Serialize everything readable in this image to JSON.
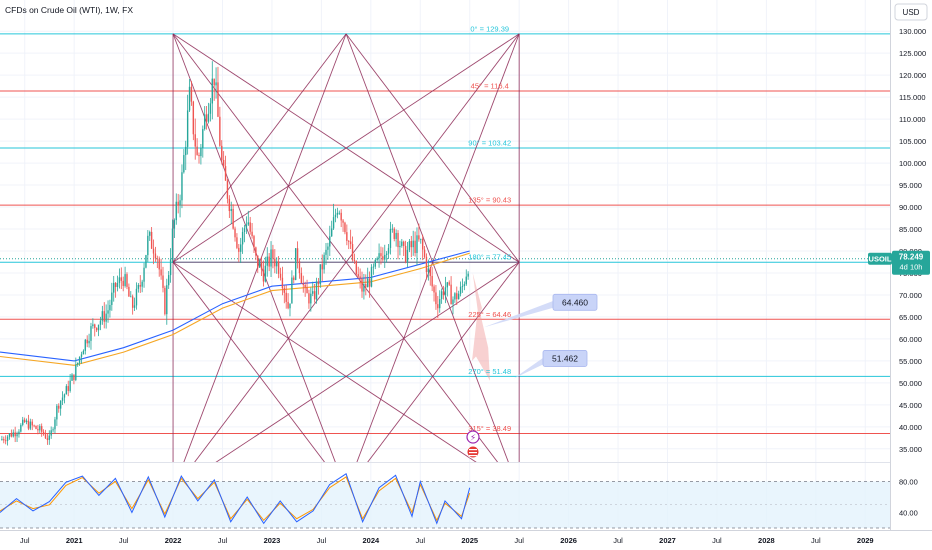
{
  "header": {
    "symbol_line": "CFDs on Crude Oil (WTI), 1W, FX",
    "currency": "USD"
  },
  "current_price": {
    "symbol": "USOIL",
    "price": "78.249",
    "countdown": "4d 10h",
    "value": 78.249
  },
  "colors": {
    "up_candle": "#26a69a",
    "down_candle": "#ef5350",
    "cyan_level": "#26c6da",
    "red_level": "#ef5350",
    "gann_lines": "#8e2a56",
    "ma_blue": "#2962ff",
    "ma_orange": "#f5a623",
    "stoch_k": "#2962ff",
    "stoch_d": "#ff9800",
    "osc_band": "#e3f2fd"
  },
  "chart_data": {
    "type": "candlestick",
    "instrument": "CFDs on Crude Oil (WTI)",
    "timeframe": "1W",
    "ylim": [
      32,
      133
    ],
    "y_ticks": [
      35,
      40,
      45,
      50,
      55,
      60,
      65,
      70,
      75,
      80,
      85,
      90,
      95,
      100,
      105,
      110,
      115,
      120,
      125,
      130
    ],
    "y_tick_labels": [
      "35.000",
      "40.000",
      "45.000",
      "50.000",
      "55.000",
      "60.000",
      "65.000",
      "70.000",
      "75.000",
      "80.000",
      "85.000",
      "90.000",
      "95.000",
      "100.000",
      "105.000",
      "110.000",
      "115.000",
      "120.000",
      "125.000",
      "130.000"
    ],
    "xlim": [
      "2020-04",
      "2029-04"
    ],
    "x_ticks": [
      {
        "date": "2020-07",
        "label": "Jul"
      },
      {
        "date": "2021-01",
        "label": "2021"
      },
      {
        "date": "2021-07",
        "label": "Jul"
      },
      {
        "date": "2022-01",
        "label": "2022"
      },
      {
        "date": "2022-07",
        "label": "Jul"
      },
      {
        "date": "2023-01",
        "label": "2023"
      },
      {
        "date": "2023-07",
        "label": "Jul"
      },
      {
        "date": "2024-01",
        "label": "2024"
      },
      {
        "date": "2024-07",
        "label": "Jul"
      },
      {
        "date": "2025-01",
        "label": "2025"
      },
      {
        "date": "2025-07",
        "label": "Jul"
      },
      {
        "date": "2026-01",
        "label": "2026"
      },
      {
        "date": "2026-07",
        "label": "Jul"
      },
      {
        "date": "2027-01",
        "label": "2027"
      },
      {
        "date": "2027-07",
        "label": "Jul"
      },
      {
        "date": "2028-01",
        "label": "2028"
      },
      {
        "date": "2028-07",
        "label": "Jul"
      },
      {
        "date": "2029-01",
        "label": "2029"
      }
    ],
    "price_path": [
      [
        "2020-04",
        37
      ],
      [
        "2020-06",
        39
      ],
      [
        "2020-07",
        41
      ],
      [
        "2020-09",
        39
      ],
      [
        "2020-10",
        37
      ],
      [
        "2020-11",
        45
      ],
      [
        "2020-12",
        48
      ],
      [
        "2021-01",
        52
      ],
      [
        "2021-02",
        58
      ],
      [
        "2021-03",
        62
      ],
      [
        "2021-05",
        66
      ],
      [
        "2021-06",
        72
      ],
      [
        "2021-07",
        74
      ],
      [
        "2021-08",
        67
      ],
      [
        "2021-09",
        72
      ],
      [
        "2021-10",
        83
      ],
      [
        "2021-11",
        80
      ],
      [
        "2021-12",
        67
      ],
      [
        "2022-01",
        85
      ],
      [
        "2022-02",
        95
      ],
      [
        "2022-03",
        115
      ],
      [
        "2022-04",
        100
      ],
      [
        "2022-05",
        112
      ],
      [
        "2022-06",
        120
      ],
      [
        "2022-07",
        98
      ],
      [
        "2022-08",
        90
      ],
      [
        "2022-09",
        80
      ],
      [
        "2022-10",
        88
      ],
      [
        "2022-11",
        78
      ],
      [
        "2022-12",
        75
      ],
      [
        "2023-01",
        79
      ],
      [
        "2023-02",
        76
      ],
      [
        "2023-03",
        67
      ],
      [
        "2023-04",
        80
      ],
      [
        "2023-05",
        70
      ],
      [
        "2023-06",
        69
      ],
      [
        "2023-07",
        76
      ],
      [
        "2023-08",
        82
      ],
      [
        "2023-09",
        91
      ],
      [
        "2023-10",
        85
      ],
      [
        "2023-11",
        76
      ],
      [
        "2023-12",
        71
      ],
      [
        "2024-01",
        74
      ],
      [
        "2024-02",
        78
      ],
      [
        "2024-03",
        82
      ],
      [
        "2024-04",
        85
      ],
      [
        "2024-05",
        79
      ],
      [
        "2024-06",
        81
      ],
      [
        "2024-07",
        82
      ],
      [
        "2024-08",
        75
      ],
      [
        "2024-09",
        68
      ],
      [
        "2024-10",
        72
      ],
      [
        "2024-11",
        69
      ],
      [
        "2024-12",
        71
      ],
      [
        "2025-01",
        78.25
      ]
    ],
    "moving_averages": [
      {
        "color": "#2962ff",
        "points": [
          [
            "2020-04",
            57
          ],
          [
            "2021-01",
            55
          ],
          [
            "2021-07",
            58
          ],
          [
            "2022-01",
            62
          ],
          [
            "2022-07",
            68
          ],
          [
            "2023-01",
            72
          ],
          [
            "2023-07",
            73
          ],
          [
            "2024-01",
            74
          ],
          [
            "2024-07",
            77
          ],
          [
            "2025-01",
            80
          ]
        ]
      },
      {
        "color": "#f5a623",
        "points": [
          [
            "2020-04",
            56
          ],
          [
            "2021-01",
            54
          ],
          [
            "2021-07",
            57
          ],
          [
            "2022-01",
            61
          ],
          [
            "2022-07",
            67
          ],
          [
            "2023-01",
            71
          ],
          [
            "2023-07",
            72
          ],
          [
            "2024-01",
            73
          ],
          [
            "2024-07",
            76
          ],
          [
            "2025-01",
            79.5
          ]
        ]
      }
    ],
    "levels": [
      {
        "value": 129.39,
        "label": "0° = 129.39",
        "color": "#26c6da"
      },
      {
        "value": 116.4,
        "label": "45° = 116.4",
        "color": "#ef5350"
      },
      {
        "value": 103.42,
        "label": "90° = 103.42",
        "color": "#26c6da"
      },
      {
        "value": 90.43,
        "label": "135° = 90.43",
        "color": "#ef5350"
      },
      {
        "value": 77.45,
        "label": "180° = 77.45",
        "color": "#26c6da"
      },
      {
        "value": 64.46,
        "label": "225° = 64.46",
        "color": "#ef5350"
      },
      {
        "value": 51.48,
        "label": "270° = 51.48",
        "color": "#26c6da"
      },
      {
        "value": 38.49,
        "label": "315° = 38.49",
        "color": "#ef5350"
      }
    ],
    "gann_box": {
      "from": "2022-01",
      "to": "2025-07",
      "top": 129.39,
      "middle": 77.45,
      "bottom": 25.5
    },
    "targets": [
      {
        "value": 64.46,
        "label": "64.460",
        "date": "2025-02"
      },
      {
        "value": 51.462,
        "label": "51.462",
        "date": "2025-01"
      }
    ],
    "stochastic": {
      "ylim": [
        20,
        100
      ],
      "y_ticks": [
        40,
        80
      ],
      "y_tick_labels": [
        "40.00",
        "80.00"
      ],
      "band": [
        20,
        80
      ],
      "k": [
        [
          "2020-04",
          40
        ],
        [
          "2020-06",
          58
        ],
        [
          "2020-08",
          42
        ],
        [
          "2020-10",
          54
        ],
        [
          "2020-12",
          79
        ],
        [
          "2021-02",
          87
        ],
        [
          "2021-04",
          62
        ],
        [
          "2021-06",
          84
        ],
        [
          "2021-08",
          40
        ],
        [
          "2021-10",
          86
        ],
        [
          "2021-12",
          34
        ],
        [
          "2022-02",
          87
        ],
        [
          "2022-04",
          55
        ],
        [
          "2022-06",
          82
        ],
        [
          "2022-08",
          28
        ],
        [
          "2022-10",
          60
        ],
        [
          "2022-12",
          26
        ],
        [
          "2023-02",
          55
        ],
        [
          "2023-04",
          28
        ],
        [
          "2023-06",
          42
        ],
        [
          "2023-08",
          76
        ],
        [
          "2023-10",
          90
        ],
        [
          "2023-12",
          28
        ],
        [
          "2024-02",
          72
        ],
        [
          "2024-04",
          88
        ],
        [
          "2024-06",
          35
        ],
        [
          "2024-07",
          80
        ],
        [
          "2024-09",
          26
        ],
        [
          "2024-10",
          55
        ],
        [
          "2024-12",
          32
        ],
        [
          "2025-01",
          72
        ]
      ],
      "d": [
        [
          "2020-04",
          42
        ],
        [
          "2020-06",
          55
        ],
        [
          "2020-08",
          45
        ],
        [
          "2020-10",
          50
        ],
        [
          "2020-12",
          75
        ],
        [
          "2021-02",
          85
        ],
        [
          "2021-04",
          65
        ],
        [
          "2021-06",
          80
        ],
        [
          "2021-08",
          45
        ],
        [
          "2021-10",
          82
        ],
        [
          "2021-12",
          38
        ],
        [
          "2022-02",
          84
        ],
        [
          "2022-04",
          58
        ],
        [
          "2022-06",
          79
        ],
        [
          "2022-08",
          32
        ],
        [
          "2022-10",
          57
        ],
        [
          "2022-12",
          30
        ],
        [
          "2023-02",
          52
        ],
        [
          "2023-04",
          32
        ],
        [
          "2023-06",
          44
        ],
        [
          "2023-08",
          72
        ],
        [
          "2023-10",
          86
        ],
        [
          "2023-12",
          32
        ],
        [
          "2024-02",
          68
        ],
        [
          "2024-04",
          84
        ],
        [
          "2024-06",
          40
        ],
        [
          "2024-07",
          76
        ],
        [
          "2024-09",
          30
        ],
        [
          "2024-10",
          52
        ],
        [
          "2024-12",
          35
        ],
        [
          "2025-01",
          65
        ]
      ]
    }
  }
}
